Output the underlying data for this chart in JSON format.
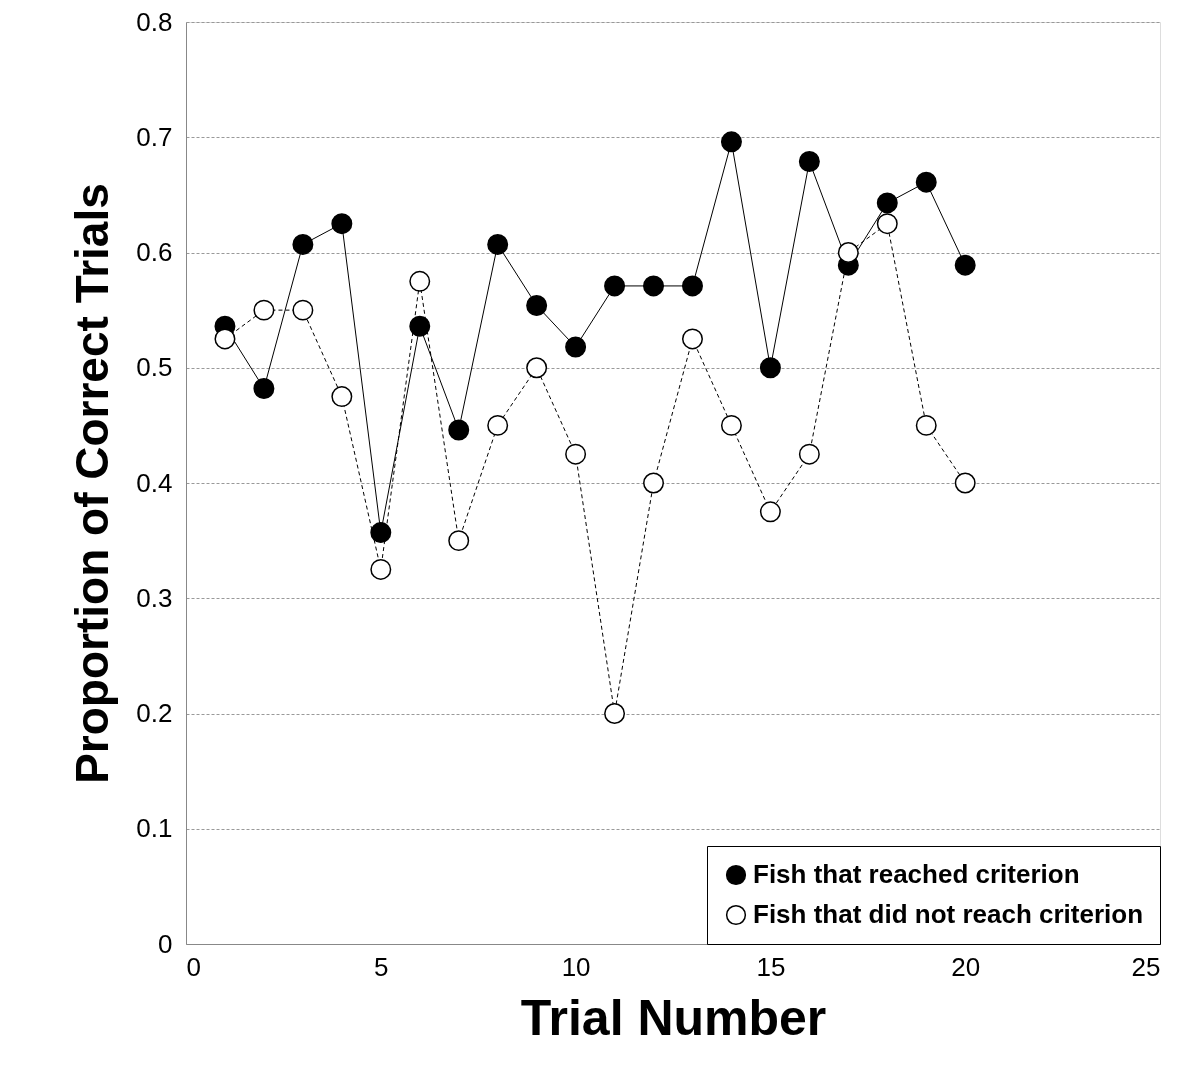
{
  "chart_data": {
    "type": "line",
    "xlabel": "Trial Number",
    "ylabel": "Proportion of Correct Trials",
    "x": [
      1,
      2,
      3,
      4,
      5,
      6,
      7,
      8,
      9,
      10,
      11,
      12,
      13,
      14,
      15,
      16,
      17,
      18,
      19,
      20
    ],
    "series": [
      {
        "name": "Fish that reached criterion",
        "color": "#000000",
        "line_style": "solid",
        "values": [
          0.536,
          0.482,
          0.607,
          0.625,
          0.357,
          0.536,
          0.446,
          0.607,
          0.554,
          0.518,
          0.571,
          0.571,
          0.571,
          0.696,
          0.5,
          0.679,
          0.589,
          0.643,
          0.661,
          0.589
        ]
      },
      {
        "name": "Fish that did not reach criterion",
        "color": "#ffffff",
        "line_style": "dashed",
        "values": [
          0.525,
          0.55,
          0.55,
          0.475,
          0.325,
          0.575,
          0.35,
          0.45,
          0.5,
          0.425,
          0.2,
          0.4,
          0.525,
          0.45,
          0.375,
          0.425,
          0.6,
          0.625,
          0.45,
          0.4
        ]
      }
    ],
    "xlim": [
      0,
      25
    ],
    "xticks": [
      0,
      5,
      10,
      15,
      20,
      25
    ],
    "ylim": [
      0,
      0.8
    ],
    "yticks": [
      0,
      0.1,
      0.2,
      0.3,
      0.4,
      0.5,
      0.6,
      0.7,
      0.8
    ],
    "grid": "y",
    "legend": "bottom right",
    "marker": "circle"
  }
}
